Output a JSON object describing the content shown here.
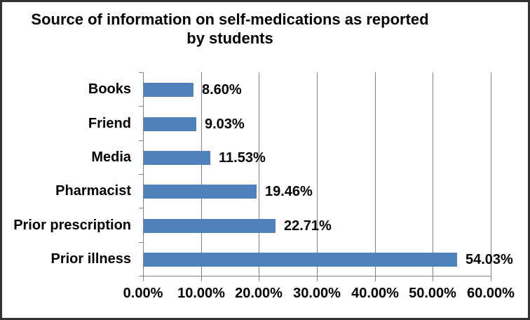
{
  "window": {
    "background_color": "#ffffff",
    "border_color": "#333333"
  },
  "chart_data": {
    "type": "bar",
    "orientation": "horizontal",
    "title": "Source of information on self-medications as reported by students",
    "title_lines": [
      "Source of information on self-medications as reported",
      "by students"
    ],
    "categories": [
      "Books",
      "Friend",
      "Media",
      "Pharmacist",
      "Prior prescription",
      "Prior illness"
    ],
    "values": [
      8.6,
      9.03,
      11.53,
      19.46,
      22.71,
      54.03
    ],
    "data_labels": [
      "8.60%",
      "9.03%",
      "11.53%",
      "19.46%",
      "22.71%",
      "54.03%"
    ],
    "x_tick_labels": [
      "0.00%",
      "10.00%",
      "20.00%",
      "30.00%",
      "40.00%",
      "50.00%",
      "60.00%"
    ],
    "xlim": [
      0,
      60
    ],
    "xlabel": "",
    "ylabel": "",
    "grid": true,
    "legend_position": "none",
    "bar_color": "#4F81BD",
    "gridline_color": "#808080",
    "axis_color": "#808080",
    "text_color": "#000000"
  }
}
